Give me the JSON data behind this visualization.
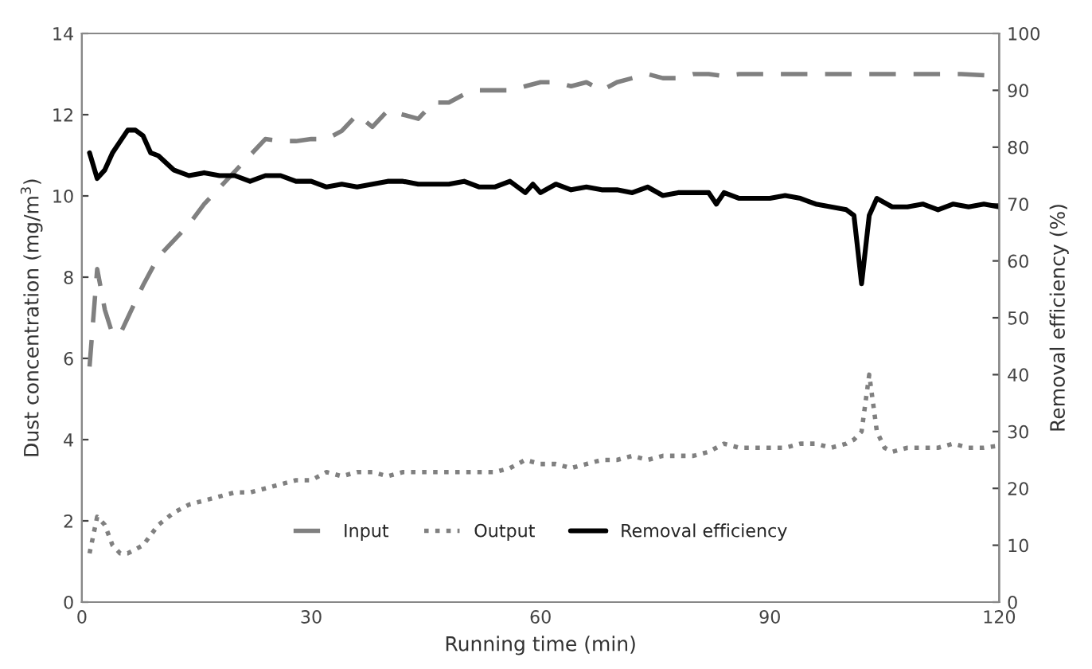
{
  "chart_data": {
    "type": "line",
    "xlabel": "Running time (min)",
    "ylabel": "Dust concentration (mg/m$^{3}$)",
    "y2label": "Removal efficiency (%)",
    "xlim": [
      0,
      120
    ],
    "xticks": [
      0,
      30,
      60,
      90,
      120
    ],
    "ylim": [
      0,
      14
    ],
    "yticks": [
      0,
      2,
      4,
      6,
      8,
      10,
      12,
      14
    ],
    "y2lim": [
      0,
      100
    ],
    "y2ticks": [
      0,
      10,
      20,
      30,
      40,
      50,
      60,
      70,
      80,
      90,
      100
    ],
    "grid": false,
    "legend": "bottom",
    "marker": "none",
    "series": [
      {
        "name": "Input",
        "color": "#808080",
        "line_style": "dashed",
        "x": [
          1,
          2,
          3,
          4,
          5,
          6,
          8,
          10,
          12,
          14,
          16,
          18,
          20,
          22,
          24,
          26,
          28,
          30,
          32,
          34,
          36,
          38,
          40,
          42,
          44,
          46,
          48,
          50,
          52,
          54,
          56,
          58,
          60,
          62,
          64,
          66,
          68,
          70,
          72,
          74,
          76,
          78,
          80,
          82,
          84,
          86,
          88,
          90,
          95,
          100,
          105,
          110,
          115,
          120
        ],
        "values": [
          5.8,
          8.2,
          7.2,
          6.6,
          6.6,
          7.0,
          7.8,
          8.5,
          8.9,
          9.3,
          9.8,
          10.2,
          10.6,
          11.0,
          11.4,
          11.35,
          11.35,
          11.4,
          11.4,
          11.6,
          12.0,
          11.7,
          12.1,
          12.0,
          11.9,
          12.3,
          12.3,
          12.5,
          12.6,
          12.6,
          12.6,
          12.7,
          12.8,
          12.8,
          12.7,
          12.8,
          12.6,
          12.8,
          12.9,
          13.0,
          12.9,
          12.9,
          13.0,
          13.0,
          12.95,
          13.0,
          13.0,
          13.0,
          13.0,
          13.0,
          13.0,
          13.0,
          13.0,
          12.95
        ]
      },
      {
        "name": "Output",
        "color": "#808080",
        "line_style": "dotted",
        "x": [
          1,
          2,
          3,
          4,
          5,
          6,
          8,
          10,
          12,
          14,
          16,
          18,
          20,
          22,
          24,
          26,
          28,
          30,
          32,
          34,
          36,
          38,
          40,
          42,
          44,
          46,
          48,
          50,
          52,
          54,
          56,
          58,
          60,
          62,
          64,
          66,
          68,
          70,
          72,
          74,
          76,
          78,
          80,
          82,
          84,
          86,
          88,
          90,
          92,
          94,
          96,
          98,
          100,
          101,
          102,
          103,
          104,
          105,
          106,
          108,
          110,
          112,
          114,
          116,
          118,
          120
        ],
        "values": [
          1.2,
          2.1,
          1.9,
          1.4,
          1.2,
          1.2,
          1.4,
          1.9,
          2.2,
          2.4,
          2.5,
          2.6,
          2.7,
          2.7,
          2.8,
          2.9,
          3.0,
          3.0,
          3.2,
          3.1,
          3.2,
          3.2,
          3.1,
          3.2,
          3.2,
          3.2,
          3.2,
          3.2,
          3.2,
          3.2,
          3.3,
          3.5,
          3.4,
          3.4,
          3.3,
          3.4,
          3.5,
          3.5,
          3.6,
          3.5,
          3.6,
          3.6,
          3.6,
          3.7,
          3.9,
          3.8,
          3.8,
          3.8,
          3.8,
          3.9,
          3.9,
          3.8,
          3.9,
          4.0,
          4.2,
          5.6,
          4.2,
          3.8,
          3.7,
          3.8,
          3.8,
          3.8,
          3.9,
          3.8,
          3.8,
          3.85
        ]
      },
      {
        "name": "Removal efficiency",
        "color": "#000000",
        "line_style": "solid",
        "axis": "y2",
        "x": [
          1,
          2,
          3,
          4,
          5,
          6,
          7,
          8,
          9,
          10,
          12,
          14,
          16,
          18,
          20,
          22,
          24,
          26,
          28,
          30,
          32,
          34,
          36,
          38,
          40,
          42,
          44,
          46,
          48,
          50,
          52,
          54,
          56,
          58,
          59,
          60,
          62,
          64,
          66,
          68,
          70,
          72,
          74,
          76,
          78,
          80,
          82,
          83,
          84,
          86,
          88,
          90,
          92,
          94,
          96,
          98,
          100,
          101,
          102,
          103,
          104,
          106,
          108,
          110,
          112,
          114,
          116,
          118,
          120
        ],
        "values": [
          79,
          74.5,
          76,
          79,
          81,
          83,
          83,
          82,
          79,
          78.5,
          76,
          75,
          75.5,
          75,
          75,
          74,
          75,
          75,
          74,
          74,
          73,
          73.5,
          73,
          73.5,
          74,
          74,
          73.5,
          73.5,
          73.5,
          74,
          73,
          73,
          74,
          72,
          73.5,
          72,
          73.5,
          72.5,
          73,
          72.5,
          72.5,
          72,
          73,
          71.5,
          72,
          72,
          72,
          70,
          72,
          71,
          71,
          71,
          71.5,
          71,
          70,
          69.5,
          69,
          68,
          56,
          68,
          71,
          69.5,
          69.5,
          70,
          69,
          70,
          69.5,
          70,
          69.5
        ]
      }
    ]
  }
}
